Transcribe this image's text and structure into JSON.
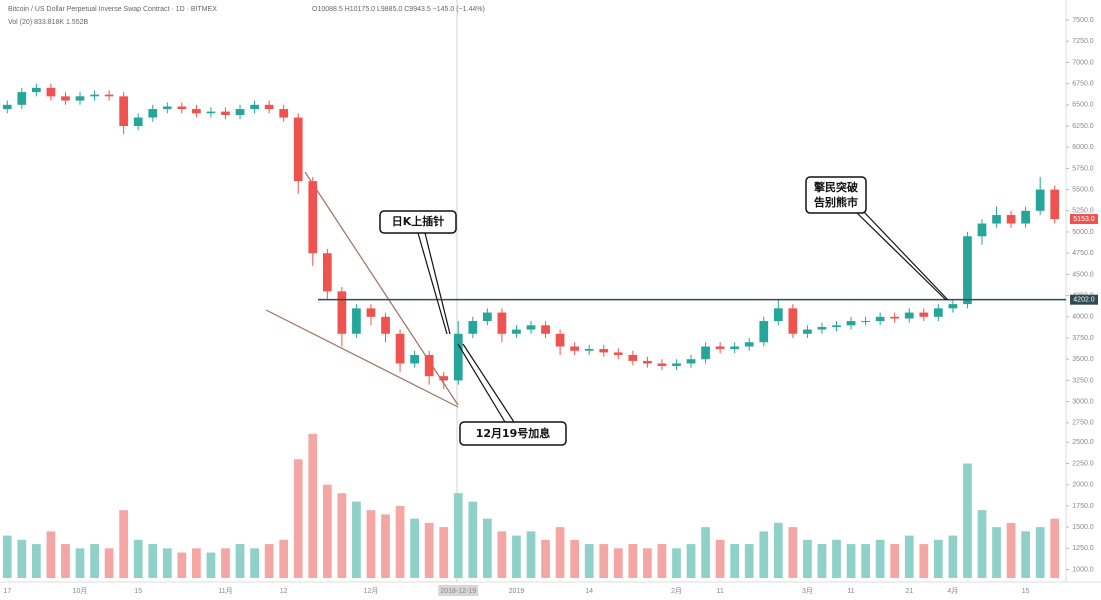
{
  "chart_data": {
    "type": "candlestick",
    "title": "Bitcoin / US Dollar Perpetual Inverse Swap Contract · 1D · BITMEX",
    "ohlc_text": "O10088.5 H10175.0 L9885.0 C9943.5 −145.0 (−1.44%)",
    "volume_title": "Vol (20)  833.818K  1.552B",
    "categories": [
      "17",
      null,
      null,
      null,
      null,
      "10月",
      null,
      null,
      null,
      "15",
      null,
      null,
      null,
      null,
      null,
      "11月",
      null,
      null,
      null,
      "12",
      null,
      null,
      null,
      null,
      null,
      "12月",
      null,
      null,
      null,
      null,
      null,
      "2018-12-19",
      null,
      null,
      null,
      "2019",
      null,
      null,
      null,
      null,
      "14",
      null,
      null,
      null,
      null,
      null,
      "2月",
      null,
      null,
      "11",
      null,
      null,
      null,
      null,
      null,
      "3月",
      null,
      null,
      "11",
      null,
      null,
      null,
      "21",
      null,
      null,
      "4月",
      null,
      null,
      null,
      null,
      "15",
      null,
      null
    ],
    "open": [
      6450,
      6500,
      6650,
      6700,
      6600,
      6550,
      6600,
      6620,
      6600,
      6250,
      6350,
      6450,
      6480,
      6450,
      6400,
      6420,
      6380,
      6450,
      6500,
      6450,
      6350,
      5600,
      4750,
      4300,
      3800,
      4100,
      4000,
      3800,
      3450,
      3550,
      3300,
      3250,
      3800,
      3950,
      4050,
      3800,
      3850,
      3900,
      3800,
      3650,
      3600,
      3620,
      3580,
      3550,
      3480,
      3450,
      3420,
      3450,
      3500,
      3650,
      3620,
      3650,
      3700,
      3950,
      4100,
      3800,
      3850,
      3880,
      3900,
      3950,
      3950,
      4000,
      3980,
      4050,
      4000,
      4100,
      4150,
      4950,
      5100,
      5200,
      5100,
      5250,
      5500
    ],
    "high": [
      6550,
      6700,
      6750,
      6750,
      6650,
      6650,
      6670,
      6670,
      6650,
      6400,
      6500,
      6530,
      6530,
      6500,
      6470,
      6470,
      6500,
      6550,
      6550,
      6500,
      6400,
      5650,
      4800,
      4350,
      4150,
      4150,
      4050,
      3850,
      3600,
      3600,
      3350,
      3950,
      4000,
      4100,
      4100,
      3900,
      3950,
      3950,
      3850,
      3700,
      3670,
      3670,
      3630,
      3600,
      3530,
      3500,
      3500,
      3550,
      3700,
      3700,
      3700,
      3750,
      4000,
      4200,
      4150,
      3900,
      3930,
      3950,
      4000,
      4000,
      4050,
      4050,
      4100,
      4100,
      4150,
      4200,
      5000,
      5150,
      5300,
      5250,
      5300,
      5650,
      5550
    ],
    "low": [
      6400,
      6450,
      6600,
      6550,
      6500,
      6500,
      6550,
      6550,
      6150,
      6200,
      6300,
      6400,
      6400,
      6350,
      6350,
      6330,
      6330,
      6400,
      6400,
      6300,
      5450,
      4600,
      4200,
      3650,
      3750,
      3900,
      3700,
      3350,
      3400,
      3200,
      3150,
      3200,
      3750,
      3900,
      3700,
      3750,
      3800,
      3750,
      3550,
      3550,
      3550,
      3530,
      3500,
      3430,
      3400,
      3370,
      3370,
      3400,
      3450,
      3570,
      3570,
      3600,
      3650,
      3900,
      3750,
      3750,
      3800,
      3830,
      3850,
      3900,
      3900,
      3930,
      3930,
      3950,
      3950,
      4050,
      4100,
      4850,
      5050,
      5050,
      5050,
      5200,
      5100
    ],
    "close": [
      6500,
      6650,
      6700,
      6600,
      6550,
      6600,
      6620,
      6600,
      6250,
      6350,
      6450,
      6480,
      6450,
      6400,
      6420,
      6380,
      6450,
      6500,
      6450,
      6350,
      5600,
      4750,
      4300,
      3800,
      4100,
      4000,
      3800,
      3450,
      3550,
      3300,
      3250,
      3800,
      3950,
      4050,
      3800,
      3850,
      3900,
      3800,
      3650,
      3600,
      3620,
      3580,
      3550,
      3480,
      3450,
      3420,
      3450,
      3500,
      3650,
      3620,
      3650,
      3700,
      3950,
      4100,
      3800,
      3850,
      3880,
      3900,
      3950,
      3950,
      4000,
      3980,
      4050,
      4000,
      4100,
      4150,
      4950,
      5100,
      5200,
      5100,
      5250,
      5500,
      5153
    ],
    "volume": [
      1400,
      1350,
      1300,
      1450,
      1300,
      1250,
      1300,
      1250,
      1700,
      1350,
      1300,
      1250,
      1200,
      1250,
      1200,
      1250,
      1300,
      1250,
      1300,
      1350,
      2300,
      2600,
      2000,
      1900,
      1800,
      1700,
      1650,
      1750,
      1600,
      1550,
      1500,
      1900,
      1800,
      1600,
      1450,
      1400,
      1450,
      1350,
      1500,
      1350,
      1300,
      1300,
      1250,
      1300,
      1250,
      1300,
      1250,
      1300,
      1500,
      1350,
      1300,
      1300,
      1450,
      1550,
      1500,
      1350,
      1300,
      1350,
      1300,
      1300,
      1350,
      1300,
      1400,
      1300,
      1350,
      1400,
      2250,
      1700,
      1500,
      1550,
      1450,
      1500,
      1600
    ],
    "up_color": "#26a69a",
    "down_color": "#ef5350",
    "ylim": [
      920,
      7736
    ],
    "yticks": [
      {
        "value": 7500,
        "label": "7500.0"
      },
      {
        "value": 7250,
        "label": "7250.0"
      },
      {
        "value": 7000,
        "label": "7000.0"
      },
      {
        "value": 6750,
        "label": "6750.0"
      },
      {
        "value": 6500,
        "label": "6500.0"
      },
      {
        "value": 6250,
        "label": "6250.0"
      },
      {
        "value": 6000,
        "label": "6000.0"
      },
      {
        "value": 5750,
        "label": "5750.0"
      },
      {
        "value": 5500,
        "label": "5500.0"
      },
      {
        "value": 5250,
        "label": "5250.0"
      },
      {
        "value": 5000,
        "label": "5000.0"
      },
      {
        "value": 4750,
        "label": "4750.0"
      },
      {
        "value": 4500,
        "label": "4500.0"
      },
      {
        "value": 4250,
        "label": "4250.0"
      },
      {
        "value": 4000,
        "label": "4000.0"
      },
      {
        "value": 3750,
        "label": "3750.0"
      },
      {
        "value": 3500,
        "label": "3500.0"
      },
      {
        "value": 3250,
        "label": "3250.0"
      },
      {
        "value": 3000,
        "label": "3000.0"
      },
      {
        "value": 2750,
        "label": "2750.0"
      }
    ],
    "y2lim": [
      900,
      2800
    ],
    "y2ticks": [
      {
        "value": 2500,
        "label": "2500.0"
      },
      {
        "value": 2250,
        "label": "2250.0"
      },
      {
        "value": 2000,
        "label": "2000.0"
      },
      {
        "value": 1750,
        "label": "1750.0"
      },
      {
        "value": 1500,
        "label": "1500.0"
      },
      {
        "value": 1250,
        "label": "1250.0"
      },
      {
        "value": 1000,
        "label": "1000.0"
      }
    ],
    "grid": false,
    "hline": {
      "value": 4202,
      "label": "4202.0"
    },
    "last_price": {
      "value": 5153,
      "label": "5153.0"
    },
    "annotations": [
      "日K上插针",
      "12月19号加息",
      "擎民突破",
      "告别熊市"
    ]
  }
}
